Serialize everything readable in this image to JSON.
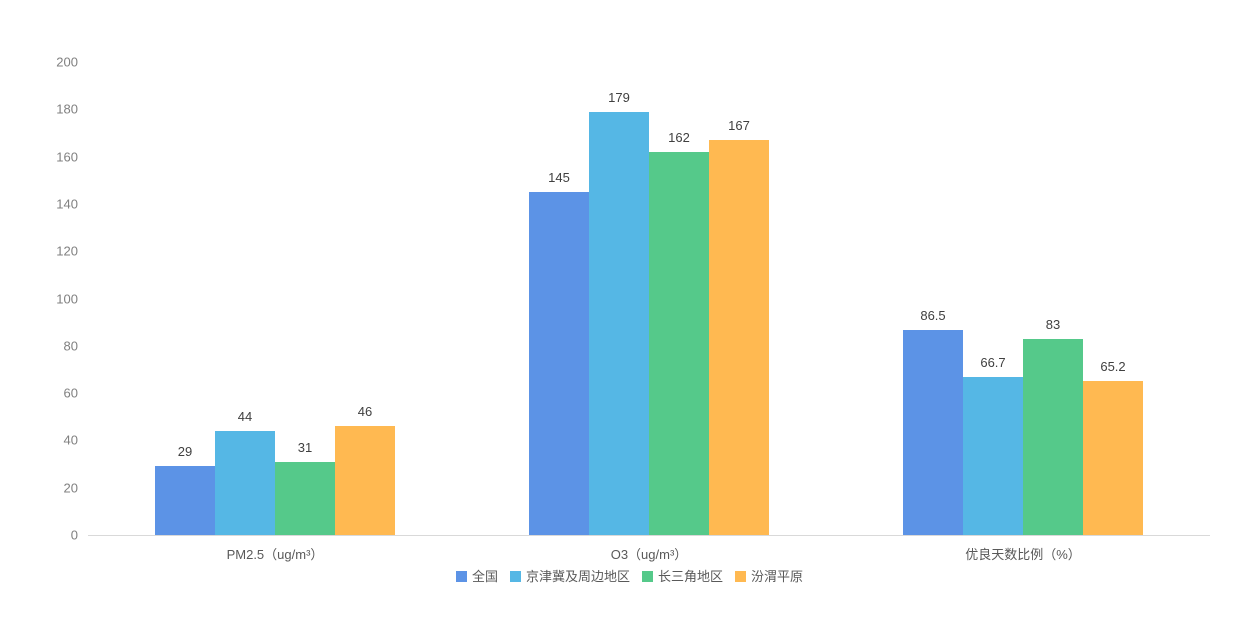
{
  "chart_data": {
    "type": "bar",
    "title": "",
    "xlabel": "",
    "ylabel": "",
    "categories": [
      "PM2.5（ug/m³）",
      "O3（ug/m³）",
      "优良天数比例（%）"
    ],
    "series": [
      {
        "name": "全国",
        "color": "#5C93E6",
        "values": [
          29,
          145,
          86.5
        ]
      },
      {
        "name": "京津冀及周边地区",
        "color": "#55B7E5",
        "values": [
          44,
          179,
          66.7
        ]
      },
      {
        "name": "长三角地区",
        "color": "#55C98A",
        "values": [
          31,
          162,
          83
        ]
      },
      {
        "name": "汾渭平原",
        "color": "#FFB951",
        "values": [
          46,
          167,
          65.2
        ]
      }
    ],
    "ylim": [
      0,
      200
    ],
    "yticks": [
      0,
      20,
      40,
      60,
      80,
      100,
      120,
      140,
      160,
      180,
      200
    ],
    "grid": false,
    "data_labels": true,
    "legend_position": "bottom"
  },
  "styles": {
    "background": "#ffffff",
    "axis_tick_color": "#808080",
    "data_label_color": "#404040",
    "category_label_color": "#595959",
    "legend_text_color": "#595959",
    "axis_line_color": "#d9d9d9"
  }
}
